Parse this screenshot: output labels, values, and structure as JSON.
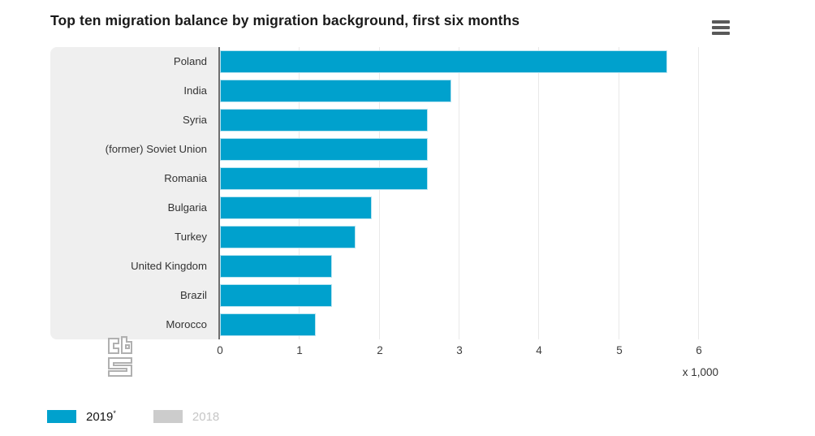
{
  "title": "Top ten migration balance by migration background, first six months",
  "menu": {
    "icon": "hamburger-menu-icon"
  },
  "chart_data": {
    "type": "bar",
    "orientation": "horizontal",
    "title": "Top ten migration balance by migration background, first six months",
    "categories": [
      "Poland",
      "India",
      "Syria",
      "(former) Soviet Union",
      "Romania",
      "Bulgaria",
      "Turkey",
      "United Kingdom",
      "Brazil",
      "Morocco"
    ],
    "series": [
      {
        "name": "2019",
        "marker": "*",
        "color": "#00a1cd",
        "active": true,
        "values": [
          5.6,
          2.9,
          2.6,
          2.6,
          2.6,
          1.9,
          1.7,
          1.4,
          1.4,
          1.2
        ]
      },
      {
        "name": "2018",
        "color": "#cccccc",
        "active": false,
        "values": []
      }
    ],
    "xlabel": "x 1,000",
    "xlim": [
      0,
      6
    ],
    "xticks": [
      "0",
      "1",
      "2",
      "3",
      "4",
      "5",
      "6"
    ],
    "grid": true,
    "legend_position": "bottom-left"
  },
  "legend": {
    "items": [
      {
        "label": "2019",
        "suffix": "*",
        "color": "#00a1cd",
        "active": true
      },
      {
        "label": "2018",
        "suffix": "",
        "color": "#cccccc",
        "active": false
      }
    ]
  },
  "footer": {
    "unit_label": "x 1,000"
  },
  "branding": {
    "logo": "cbs-logo",
    "color": "#b0b0b0"
  }
}
